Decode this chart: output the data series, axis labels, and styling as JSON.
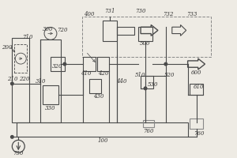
{
  "bg_color": "#eeebe4",
  "lc": "#4a4a4a",
  "lc_light": "#888888",
  "lw": 0.8,
  "figsize": [
    3.0,
    2.0
  ],
  "dpi": 100
}
